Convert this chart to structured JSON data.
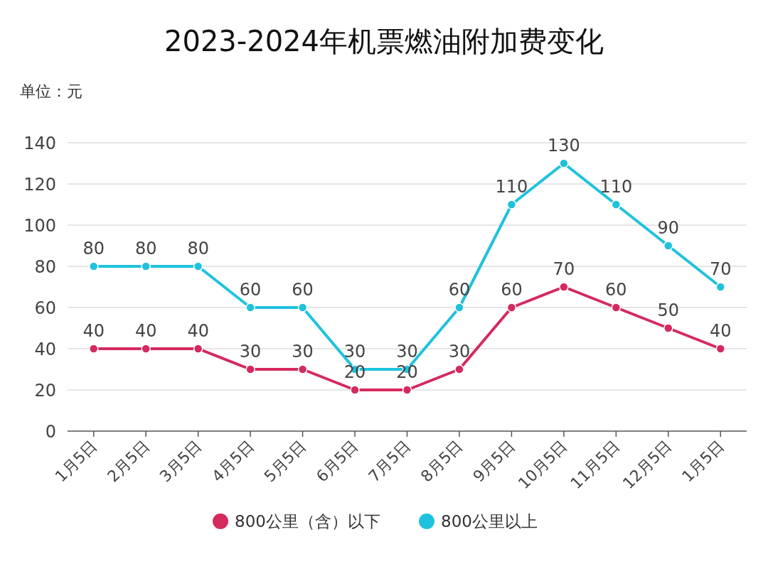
{
  "chart_data": {
    "type": "line",
    "title": "2023-2024年机票燃油附加费变化",
    "annotations": [
      "单位：元"
    ],
    "categories": [
      "1月5日",
      "2月5日",
      "3月5日",
      "4月5日",
      "5月5日",
      "6月5日",
      "7月5日",
      "8月5日",
      "9月5日",
      "10月5日",
      "11月5日",
      "12月5日",
      "1月5日"
    ],
    "series": [
      {
        "name": "800公里（含）以下",
        "color": "#d42a5e",
        "values": [
          40,
          40,
          40,
          30,
          30,
          20,
          20,
          30,
          60,
          70,
          60,
          50,
          40
        ]
      },
      {
        "name": "800公里以上",
        "color": "#1fc2dc",
        "values": [
          80,
          80,
          80,
          60,
          60,
          30,
          30,
          60,
          110,
          130,
          110,
          90,
          70
        ]
      }
    ],
    "ylim": [
      0,
      140
    ],
    "yticks": [
      0,
      20,
      40,
      60,
      80,
      100,
      120,
      140
    ],
    "grid": "y",
    "legend": "bottom",
    "marker": "circle",
    "line_style": "solid",
    "data_labels": true
  }
}
